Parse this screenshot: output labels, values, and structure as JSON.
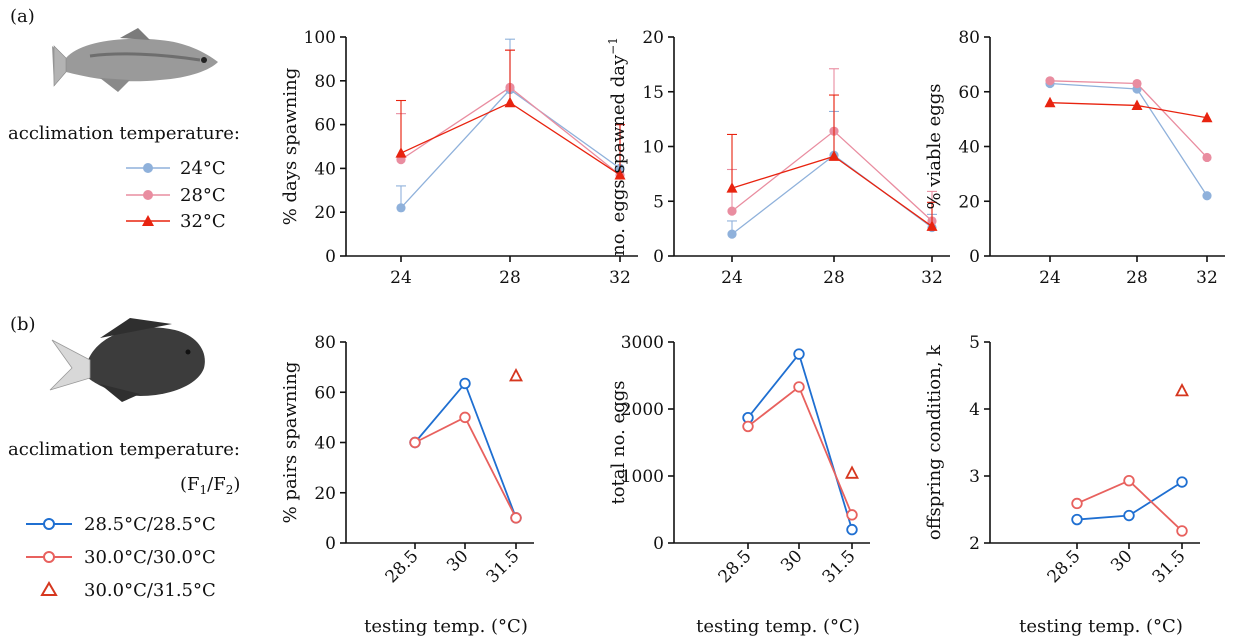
{
  "panel_a": {
    "label": "(a)",
    "legend_title": "acclimation temperature:",
    "legend": [
      {
        "name": "24°C",
        "color": "#8fb1db",
        "marker": "circle"
      },
      {
        "name": "28°C",
        "color": "#e98da0",
        "marker": "circle"
      },
      {
        "name": "32°C",
        "color": "#e8230f",
        "marker": "triangle"
      }
    ]
  },
  "panel_b": {
    "label": "(b)",
    "legend_title": "acclimation temperature:",
    "legend_subtitle_main": "(F",
    "legend_subtitle_s1": "1",
    "legend_subtitle_mid": "/F",
    "legend_subtitle_s2": "2",
    "legend_subtitle_end": ")",
    "legend": [
      {
        "name": "28.5°C/28.5°C",
        "color": "#1f6fd1",
        "marker": "open-circle"
      },
      {
        "name": "30.0°C/30.0°C",
        "color": "#e8615e",
        "marker": "open-circle"
      },
      {
        "name": "30.0°C/31.5°C",
        "color": "#d6371f",
        "marker": "open-triangle"
      }
    ]
  },
  "chart_data": [
    {
      "id": "a1",
      "type": "line",
      "title": "",
      "xlabel": "",
      "ylabel": "% days spawning",
      "categories": [
        "24",
        "28",
        "32"
      ],
      "ylim": [
        0,
        100
      ],
      "yticks": [
        0,
        20,
        40,
        60,
        80,
        100
      ],
      "series": [
        {
          "name": "24°C",
          "values": [
            22,
            76,
            40
          ],
          "err": [
            10,
            23,
            20
          ],
          "color": "#8fb1db",
          "marker": "circle"
        },
        {
          "name": "28°C",
          "values": [
            44,
            77,
            37
          ],
          "err": [
            21,
            17,
            23
          ],
          "color": "#e98da0",
          "marker": "circle"
        },
        {
          "name": "32°C",
          "values": [
            47,
            70,
            37
          ],
          "err": [
            24,
            24,
            23
          ],
          "color": "#e8230f",
          "marker": "triangle"
        }
      ]
    },
    {
      "id": "a2",
      "type": "line",
      "title": "",
      "xlabel": "",
      "ylabel": "no. eggs spawned day",
      "ylabel_sup": "−1",
      "categories": [
        "24",
        "28",
        "32"
      ],
      "ylim": [
        0,
        20
      ],
      "yticks": [
        0,
        5,
        10,
        15,
        20
      ],
      "series": [
        {
          "name": "24°C",
          "values": [
            2.0,
            9.2,
            2.6
          ],
          "err": [
            1.2,
            4.0,
            1.2
          ],
          "color": "#8fb1db",
          "marker": "circle"
        },
        {
          "name": "28°C",
          "values": [
            4.1,
            11.4,
            3.2
          ],
          "err": [
            3.8,
            5.7,
            2.7
          ],
          "color": "#e98da0",
          "marker": "circle"
        },
        {
          "name": "32°C",
          "values": [
            6.2,
            9.1,
            2.7
          ],
          "err": [
            4.9,
            5.6,
            2.2
          ],
          "color": "#e8230f",
          "marker": "triangle"
        }
      ]
    },
    {
      "id": "a3",
      "type": "line",
      "title": "",
      "xlabel": "",
      "ylabel": "% viable eggs",
      "categories": [
        "24",
        "28",
        "32"
      ],
      "ylim": [
        0,
        80
      ],
      "yticks": [
        0,
        20,
        40,
        60,
        80
      ],
      "series": [
        {
          "name": "24°C",
          "values": [
            63,
            61,
            22
          ],
          "color": "#8fb1db",
          "marker": "circle"
        },
        {
          "name": "28°C",
          "values": [
            64,
            63,
            36
          ],
          "color": "#e98da0",
          "marker": "circle"
        },
        {
          "name": "32°C",
          "values": [
            56,
            55,
            50.5
          ],
          "color": "#e8230f",
          "marker": "triangle"
        }
      ]
    },
    {
      "id": "b1",
      "type": "line",
      "title": "",
      "xlabel": "testing temp. (°C)",
      "ylabel": "% pairs spawning",
      "categories": [
        "28.5",
        "30",
        "31.5"
      ],
      "ylim": [
        0,
        80
      ],
      "yticks": [
        0,
        20,
        40,
        60,
        80
      ],
      "series": [
        {
          "name": "28.5°C/28.5°C",
          "values": [
            40,
            63.5,
            10
          ],
          "color": "#1f6fd1",
          "marker": "open-circle"
        },
        {
          "name": "30.0°C/30.0°C",
          "values": [
            40,
            50,
            10
          ],
          "color": "#e8615e",
          "marker": "open-circle"
        },
        {
          "name": "30.0°C/31.5°C",
          "values": [
            null,
            null,
            66.5
          ],
          "color": "#d6371f",
          "marker": "open-triangle"
        }
      ]
    },
    {
      "id": "b2",
      "type": "line",
      "title": "",
      "xlabel": "testing temp. (°C)",
      "ylabel": "total no. eggs",
      "categories": [
        "28.5",
        "30",
        "31.5"
      ],
      "ylim": [
        0,
        3000
      ],
      "yticks": [
        0,
        1000,
        2000,
        3000
      ],
      "series": [
        {
          "name": "28.5°C/28.5°C",
          "values": [
            1870,
            2820,
            200
          ],
          "color": "#1f6fd1",
          "marker": "open-circle"
        },
        {
          "name": "30.0°C/30.0°C",
          "values": [
            1740,
            2330,
            420
          ],
          "color": "#e8615e",
          "marker": "open-circle"
        },
        {
          "name": "30.0°C/31.5°C",
          "values": [
            null,
            null,
            1040
          ],
          "color": "#d6371f",
          "marker": "open-triangle"
        }
      ]
    },
    {
      "id": "b3",
      "type": "line",
      "title": "",
      "xlabel": "testing temp. (°C)",
      "ylabel": "offspring condition, k",
      "categories": [
        "28.5",
        "30",
        "31.5"
      ],
      "ylim": [
        2,
        5
      ],
      "yticks": [
        2,
        3,
        4,
        5
      ],
      "series": [
        {
          "name": "28.5°C/28.5°C",
          "values": [
            2.35,
            2.41,
            2.91
          ],
          "color": "#1f6fd1",
          "marker": "open-circle"
        },
        {
          "name": "30.0°C/30.0°C",
          "values": [
            2.59,
            2.93,
            2.18
          ],
          "color": "#e8615e",
          "marker": "open-circle"
        },
        {
          "name": "30.0°C/31.5°C",
          "values": [
            null,
            null,
            4.27
          ],
          "color": "#d6371f",
          "marker": "open-triangle"
        }
      ]
    }
  ]
}
